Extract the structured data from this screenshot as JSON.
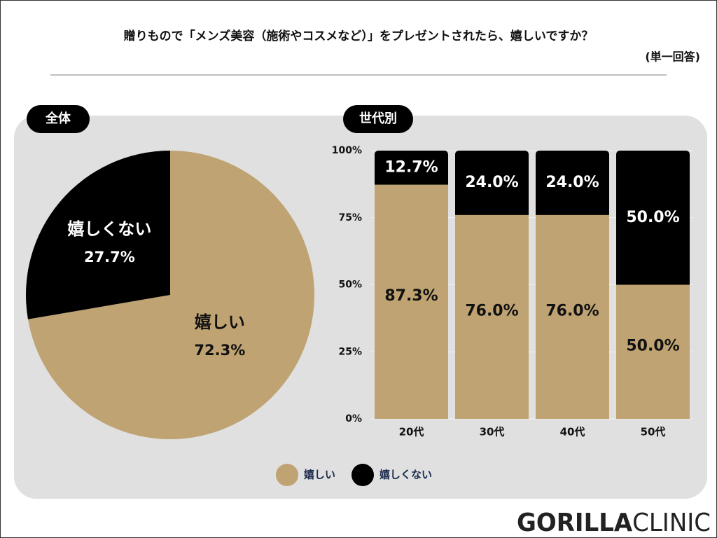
{
  "title": "贈りもので「メンズ美容（施術やコスメなど）」をプレゼントされたら、嬉しいですか？",
  "subtitle": "(単一回答)",
  "logo": {
    "bold": "GORILLA",
    "light": "CLINIC"
  },
  "chart_data": [
    {
      "type": "pie",
      "label": "全体",
      "categories": [
        "嬉しい",
        "嬉しくない"
      ],
      "values": [
        72.3,
        27.7
      ],
      "value_labels": [
        "72.3%",
        "27.7%"
      ],
      "colors": [
        "#bfa372",
        "#000000"
      ]
    },
    {
      "type": "bar",
      "label": "世代別",
      "stacked": true,
      "categories": [
        "20代",
        "30代",
        "40代",
        "50代"
      ],
      "series": [
        {
          "name": "嬉しい",
          "color": "#bfa372",
          "values": [
            87.3,
            76.0,
            76.0,
            50.0
          ],
          "value_labels": [
            "87.3%",
            "76.0%",
            "76.0%",
            "50.0%"
          ]
        },
        {
          "name": "嬉しくない",
          "color": "#000000",
          "values": [
            12.7,
            24.0,
            24.0,
            50.0
          ],
          "value_labels": [
            "12.7%",
            "24.0%",
            "24.0%",
            "50.0%"
          ]
        }
      ],
      "ylim": [
        0,
        100
      ],
      "yticks": [
        {
          "value": 0,
          "label": "0%"
        },
        {
          "value": 25,
          "label": "25%"
        },
        {
          "value": 50,
          "label": "50%"
        },
        {
          "value": 75,
          "label": "75%"
        },
        {
          "value": 100,
          "label": "100%"
        }
      ],
      "grid": true
    }
  ]
}
